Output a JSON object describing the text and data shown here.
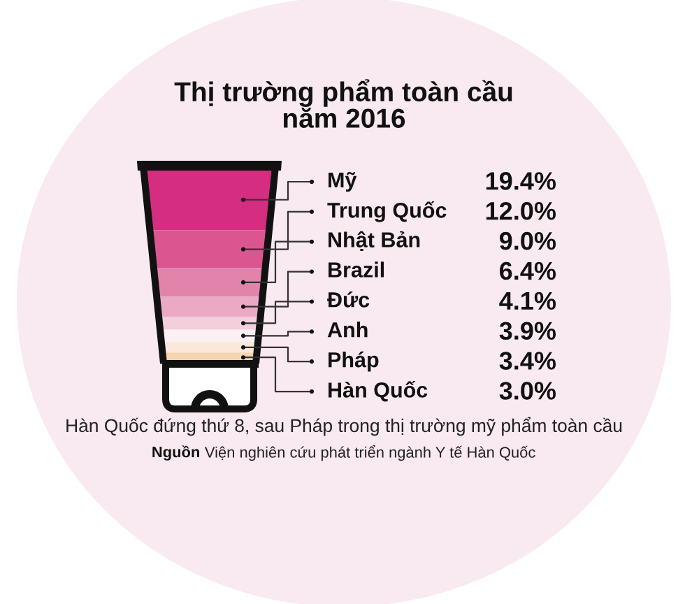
{
  "chart_data": {
    "type": "other",
    "title": "Thị trường phẩm toàn cầu\nnăm 2016",
    "categories": [
      "Mỹ",
      "Trung Quốc",
      "Nhật Bản",
      "Brazil",
      "Đức",
      "Anh",
      "Pháp",
      "Hàn Quốc"
    ],
    "values": [
      19.4,
      12.0,
      9.0,
      6.4,
      4.1,
      3.9,
      3.4,
      3.0
    ],
    "value_labels": [
      "19.4%",
      "12.0%",
      "9.0%",
      "6.4%",
      "4.1%",
      "3.9%",
      "3.4%",
      "3.0%"
    ],
    "colors": [
      "#d52d80",
      "#db5590",
      "#e283ab",
      "#eba9c6",
      "#f3cedd",
      "#fcf0f5",
      "#fae9d8",
      "#f7d4b0"
    ],
    "annotations": [
      "Hàn Quốc đứng thứ 8, sau Pháp trong thị trường mỹ phẩm toàn cầu",
      "Nguồn Viện nghiên cứu phát triển ngành Y tế Hàn Quốc"
    ]
  }
}
